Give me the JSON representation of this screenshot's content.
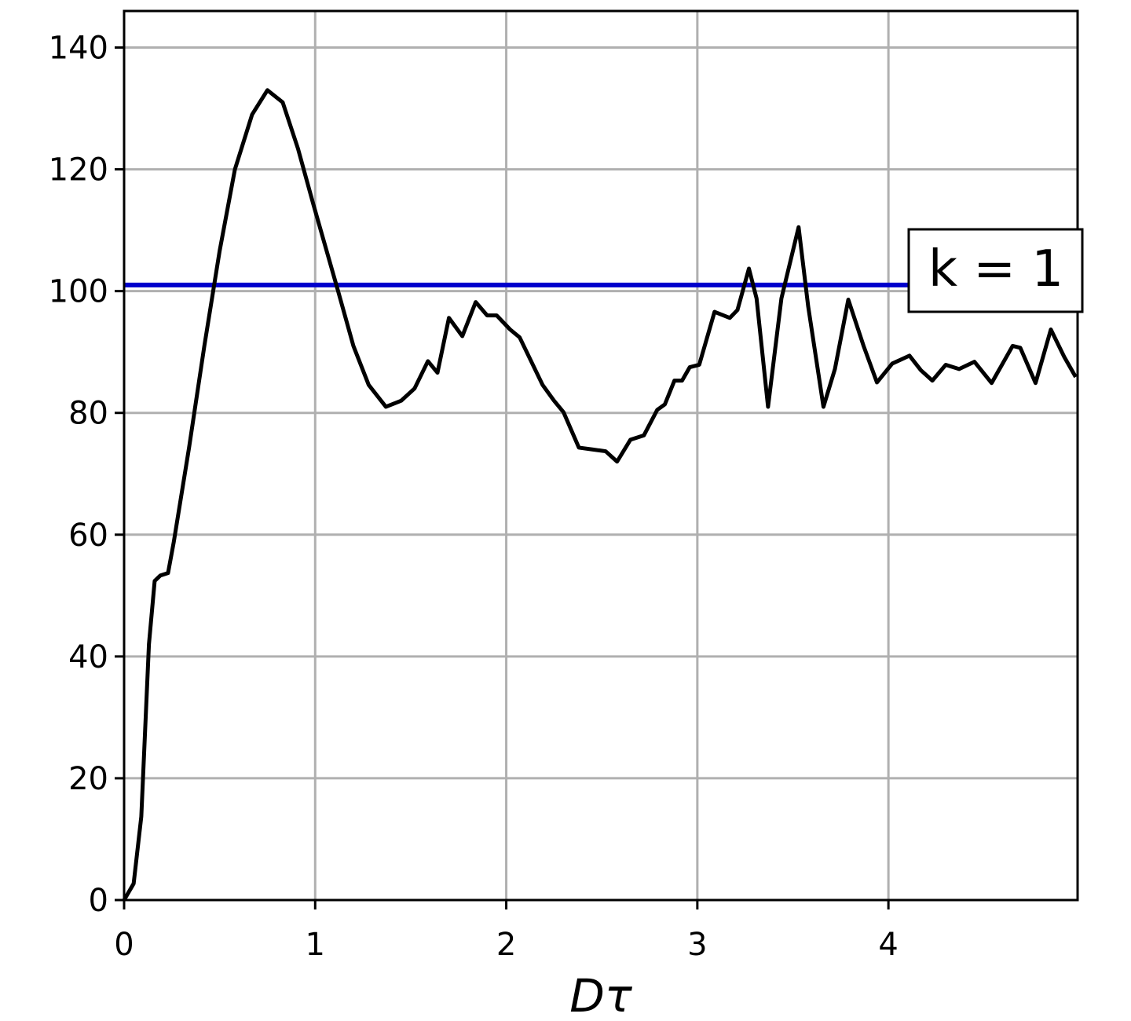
{
  "chart_data": {
    "type": "line",
    "x_label": "Dτ",
    "annotation": "k = 1",
    "hline": {
      "value": 101,
      "color": "#0000cc"
    },
    "xlim": [
      0,
      4.99
    ],
    "xticks": [
      0,
      1,
      2,
      3,
      4
    ],
    "ylim": [
      0,
      146
    ],
    "yticks": [
      0,
      20,
      40,
      60,
      80,
      100,
      120,
      140
    ],
    "grid": true,
    "series": [
      {
        "color": "#000000",
        "x": [
          0,
          0.05,
          0.09,
          0.13,
          0.16,
          0.19,
          0.23,
          0.26,
          0.34,
          0.42,
          0.5,
          0.58,
          0.67,
          0.75,
          0.83,
          0.91,
          0.99,
          1.12,
          1.2,
          1.28,
          1.37,
          1.45,
          1.52,
          1.59,
          1.64,
          1.7,
          1.77,
          1.84,
          1.9,
          1.95,
          2.02,
          2.07,
          2.19,
          2.25,
          2.3,
          2.38,
          2.45,
          2.52,
          2.58,
          2.65,
          2.72,
          2.79,
          2.83,
          2.88,
          2.92,
          2.96,
          3.01,
          3.09,
          3.17,
          3.21,
          3.27,
          3.31,
          3.37,
          3.44,
          3.53,
          3.58,
          3.66,
          3.72,
          3.79,
          3.87,
          3.94,
          4.02,
          4.11,
          4.17,
          4.23,
          4.3,
          4.37,
          4.45,
          4.54,
          4.65,
          4.69,
          4.77,
          4.85,
          4.92,
          4.98
        ],
        "values": [
          0,
          2.7,
          13.7,
          42,
          52.4,
          53.3,
          53.7,
          58.8,
          74.3,
          91,
          106.6,
          120,
          129,
          133,
          131,
          123.4,
          114.3,
          100,
          91,
          84.6,
          81,
          82,
          84,
          88.5,
          86.6,
          95.6,
          92.6,
          98.2,
          96,
          96,
          93.7,
          92.4,
          84.6,
          82,
          80.1,
          74.3,
          74,
          73.7,
          72,
          75.6,
          76.3,
          80.5,
          81.4,
          85.3,
          85.3,
          87.5,
          87.9,
          96.6,
          95.6,
          96.9,
          103.7,
          98.8,
          81,
          98.8,
          110.5,
          97.5,
          81,
          87.2,
          98.6,
          91,
          85,
          88.1,
          89.4,
          87,
          85.3,
          87.9,
          87.2,
          88.4,
          84.9,
          91,
          90.7,
          84.9,
          93.7,
          89.2,
          85.9
        ]
      }
    ]
  }
}
